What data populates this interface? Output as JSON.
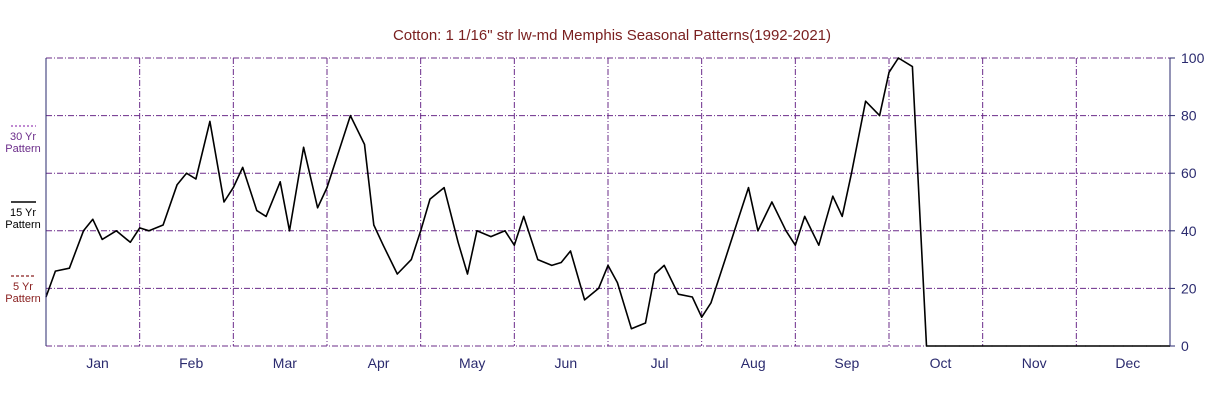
{
  "chart_data": {
    "type": "line",
    "title": "Cotton: 1 1/16\" str lw-md Memphis Seasonal Patterns(1992-2021)",
    "xlabel": "",
    "ylabel": "",
    "ylim": [
      0,
      100
    ],
    "yticks": [
      0,
      20,
      40,
      60,
      80,
      100
    ],
    "grid": true,
    "legend_position": "left",
    "months": [
      "Jan",
      "Feb",
      "Mar",
      "Apr",
      "May",
      "Jun",
      "Jul",
      "Aug",
      "Sep",
      "Oct",
      "Nov",
      "Dec"
    ],
    "x_domain": [
      0,
      12
    ],
    "colors": {
      "p30": "#9a44b8",
      "p15": "#000000",
      "p5": "#8a2020",
      "grid": "#6b2c8a",
      "axis": "#2a2a6e",
      "title": "#7a2020"
    },
    "series": [
      {
        "name": "15 Yr Pattern",
        "legend": [
          "15 Yr",
          "Pattern"
        ],
        "style": "solid",
        "x": [
          0.0,
          0.1,
          0.25,
          0.4,
          0.5,
          0.6,
          0.75,
          0.9,
          1.0,
          1.1,
          1.25,
          1.4,
          1.5,
          1.6,
          1.75,
          1.9,
          2.0,
          2.1,
          2.25,
          2.35,
          2.5,
          2.6,
          2.75,
          2.9,
          3.0,
          3.1,
          3.25,
          3.4,
          3.5,
          3.6,
          3.75,
          3.9,
          4.0,
          4.1,
          4.25,
          4.4,
          4.5,
          4.6,
          4.75,
          4.9,
          5.0,
          5.1,
          5.25,
          5.4,
          5.5,
          5.6,
          5.75,
          5.9,
          6.0,
          6.1,
          6.25,
          6.4,
          6.5,
          6.6,
          6.75,
          6.9,
          7.0,
          7.1,
          7.25,
          7.4,
          7.5,
          7.6,
          7.75,
          7.9,
          8.0,
          8.1,
          8.25,
          8.4,
          8.5,
          8.6,
          8.75,
          8.9,
          9.0,
          9.1,
          9.25,
          9.4,
          9.5,
          9.6,
          9.75,
          9.9,
          10.0,
          10.1,
          10.25,
          10.4,
          10.5,
          10.6,
          10.75,
          10.9,
          11.0,
          11.1,
          11.25,
          11.4,
          11.5,
          11.6,
          11.75,
          11.9,
          12.0
        ],
        "values": [
          17,
          26,
          27,
          40,
          44,
          37,
          40,
          36,
          41,
          40,
          42,
          56,
          60,
          58,
          78,
          50,
          55,
          62,
          47,
          45,
          57,
          40,
          69,
          48,
          55,
          65,
          80,
          70,
          42,
          35,
          25,
          30,
          40,
          51,
          55,
          36,
          25,
          40,
          38,
          40,
          35,
          45,
          30,
          28,
          29,
          33,
          16,
          20,
          28,
          22,
          6,
          8,
          25,
          28,
          18,
          17,
          10,
          15,
          30,
          45,
          55,
          40,
          50,
          40,
          35,
          45,
          35,
          52,
          45,
          60,
          85,
          80,
          95,
          100,
          97,
          0,
          0,
          0,
          0,
          0,
          0,
          0,
          0,
          0,
          0,
          0,
          0,
          0,
          0,
          0,
          0,
          0,
          0,
          0,
          0,
          0,
          0
        ]
      }
    ]
  },
  "legend": {
    "p30_line1": "30 Yr",
    "p30_line2": "Pattern",
    "p15_line1": "15 Yr",
    "p15_line2": "Pattern",
    "p5_line1": "5 Yr",
    "p5_line2": "Pattern"
  }
}
